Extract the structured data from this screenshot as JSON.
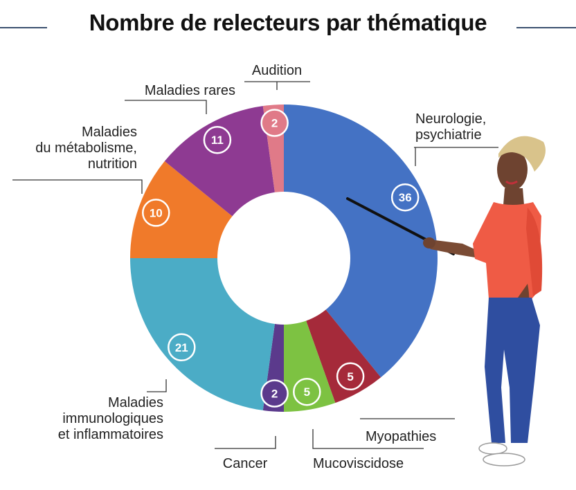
{
  "title": "Nombre de relecteurs par thématique",
  "chart_data": {
    "type": "pie",
    "title": "Nombre de relecteurs par thématique",
    "slices": [
      {
        "label": "Neurologie, psychiatrie",
        "value": 36,
        "color": "#4472c4"
      },
      {
        "label": "Myopathies",
        "value": 5,
        "color": "#a52a3a"
      },
      {
        "label": "Mucoviscidose",
        "value": 5,
        "color": "#7dc242"
      },
      {
        "label": "Cancer",
        "value": 2,
        "color": "#5b3a8c"
      },
      {
        "label": "Maladies immunologiques et inflammatoires",
        "value": 21,
        "color": "#4bacc6"
      },
      {
        "label": "Maladies du métabolisme, nutrition",
        "value": 10,
        "color": "#f07a2a"
      },
      {
        "label": "Maladies rares",
        "value": 11,
        "color": "#8e3a92"
      },
      {
        "label": "Audition",
        "value": 2,
        "color": "#e07a88"
      }
    ],
    "label_lines": [
      [
        "Neurologie,",
        "psychiatrie"
      ],
      [
        "Myopathies"
      ],
      [
        "Mucoviscidose"
      ],
      [
        "Cancer"
      ],
      [
        "Maladies",
        "immunologiques",
        "et inflammatoires"
      ],
      [
        "Maladies",
        "du métabolisme,",
        "nutrition"
      ],
      [
        "Maladies rares"
      ],
      [
        "Audition"
      ]
    ]
  }
}
